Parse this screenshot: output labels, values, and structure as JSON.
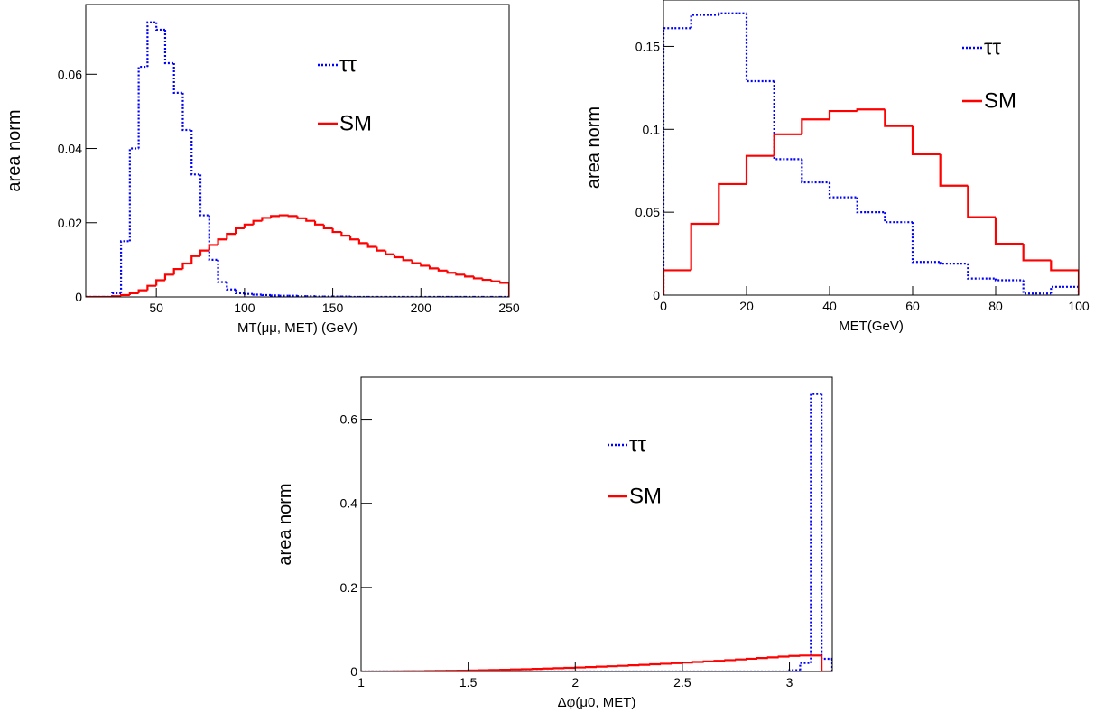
{
  "chart_data": [
    {
      "type": "histogram",
      "x_label": "MT(μμ, MET) (GeV)",
      "y_label": "area norm",
      "bins": [
        10,
        15,
        20,
        25,
        30,
        35,
        40,
        45,
        50,
        55,
        60,
        65,
        70,
        75,
        80,
        85,
        90,
        95,
        100,
        105,
        110,
        115,
        120,
        125,
        130,
        135,
        140,
        145,
        150,
        155,
        160,
        165,
        170,
        175,
        180,
        185,
        190,
        195,
        200,
        205,
        210,
        215,
        220,
        225,
        230,
        235,
        240,
        245,
        250
      ],
      "series": [
        {
          "name": "ττ",
          "color": "#0000ff",
          "line_style": "dotted",
          "values": [
            0,
            0,
            0,
            0.001,
            0.015,
            0.04,
            0.062,
            0.074,
            0.072,
            0.063,
            0.055,
            0.045,
            0.033,
            0.022,
            0.01,
            0.004,
            0.002,
            0.001,
            0.0008,
            0.0006,
            0.0005,
            0.0004,
            0.0003,
            0.0003,
            0.0002,
            0.0002,
            0.0001,
            0.0001,
            0.0001,
            0.0001,
            0,
            0,
            0,
            0,
            0,
            0,
            0,
            0,
            0,
            0,
            0,
            0,
            0,
            0,
            0,
            0,
            0,
            0
          ]
        },
        {
          "name": "SM",
          "color": "#ff0000",
          "line_style": "solid",
          "values": [
            0,
            0,
            0,
            0.0002,
            0.0005,
            0.001,
            0.0018,
            0.003,
            0.0045,
            0.006,
            0.0075,
            0.009,
            0.011,
            0.0125,
            0.014,
            0.0155,
            0.017,
            0.0185,
            0.0195,
            0.0205,
            0.0213,
            0.0218,
            0.022,
            0.0218,
            0.0212,
            0.0205,
            0.0195,
            0.0185,
            0.0175,
            0.0165,
            0.0155,
            0.0145,
            0.0135,
            0.0125,
            0.0115,
            0.0107,
            0.0099,
            0.0091,
            0.0084,
            0.0077,
            0.0071,
            0.0065,
            0.006,
            0.0055,
            0.005,
            0.0046,
            0.0042,
            0.0038
          ]
        }
      ],
      "xlim": [
        10,
        250
      ],
      "xticks": [
        50,
        100,
        150,
        200,
        250
      ],
      "ylim": [
        0,
        0.0788
      ],
      "yticks": [
        0,
        0.02,
        0.04,
        0.06
      ],
      "grid": false
    },
    {
      "type": "histogram",
      "x_label": "MET(GeV)",
      "y_label": "area norm",
      "bins": [
        0,
        6.67,
        13.33,
        20,
        26.67,
        33.33,
        40,
        46.67,
        53.33,
        60,
        66.67,
        73.33,
        80,
        86.67,
        93.33,
        100
      ],
      "series": [
        {
          "name": "ττ",
          "color": "#0000ff",
          "line_style": "dotted",
          "values": [
            0.161,
            0.169,
            0.17,
            0.129,
            0.082,
            0.068,
            0.059,
            0.05,
            0.044,
            0.02,
            0.019,
            0.01,
            0.009,
            0.001,
            0.005
          ]
        },
        {
          "name": "SM",
          "color": "#ff0000",
          "line_style": "solid",
          "values": [
            0.015,
            0.043,
            0.067,
            0.084,
            0.097,
            0.106,
            0.111,
            0.112,
            0.102,
            0.085,
            0.066,
            0.047,
            0.031,
            0.021,
            0.015
          ]
        }
      ],
      "xlim": [
        0,
        100
      ],
      "xticks": [
        0,
        20,
        40,
        60,
        80,
        100
      ],
      "ylim": [
        0,
        0.178
      ],
      "yticks": [
        0,
        0.05,
        0.1,
        0.15
      ],
      "grid": false
    },
    {
      "type": "histogram",
      "x_label": "Δφ(μ0, MET)",
      "y_label": "area norm",
      "bins": [
        1,
        1.05,
        1.1,
        1.15,
        1.2,
        1.25,
        1.3,
        1.35,
        1.4,
        1.45,
        1.5,
        1.55,
        1.6,
        1.65,
        1.7,
        1.75,
        1.8,
        1.85,
        1.9,
        1.95,
        2,
        2.05,
        2.1,
        2.15,
        2.2,
        2.25,
        2.3,
        2.35,
        2.4,
        2.45,
        2.5,
        2.55,
        2.6,
        2.65,
        2.7,
        2.75,
        2.8,
        2.85,
        2.9,
        2.95,
        3,
        3.05,
        3.1,
        3.15,
        3.2
      ],
      "series": [
        {
          "name": "ττ",
          "color": "#0000ff",
          "line_style": "dotted",
          "values": [
            0,
            0,
            0,
            0,
            0,
            0,
            0,
            0,
            0,
            0,
            0,
            0,
            0,
            0,
            0,
            0,
            0,
            0,
            0,
            0,
            0,
            0,
            0,
            0,
            0,
            0,
            0,
            0,
            0,
            0,
            0,
            0,
            0,
            0,
            0,
            0,
            0,
            0,
            0,
            0,
            0.003,
            0.02,
            0.66,
            0.03
          ]
        },
        {
          "name": "SM",
          "color": "#ff0000",
          "line_style": "solid",
          "values": [
            0,
            0.0001,
            0.0001,
            0.0003,
            0.0005,
            0.0007,
            0.001,
            0.0013,
            0.0016,
            0.002,
            0.0025,
            0.003,
            0.0035,
            0.0041,
            0.0048,
            0.0054,
            0.0062,
            0.0069,
            0.0078,
            0.0086,
            0.0095,
            0.0105,
            0.0115,
            0.0125,
            0.0136,
            0.0147,
            0.0159,
            0.0172,
            0.0184,
            0.0197,
            0.0211,
            0.0225,
            0.024,
            0.0254,
            0.027,
            0.0286,
            0.0302,
            0.0319,
            0.0336,
            0.0354,
            0.037,
            0.038,
            0.038,
            0
          ]
        }
      ],
      "xlim": [
        1,
        3.2
      ],
      "xticks": [
        1,
        1.5,
        2,
        2.5,
        3
      ],
      "ylim": [
        0,
        0.7
      ],
      "yticks": [
        0,
        0.2,
        0.4,
        0.6
      ],
      "grid": false
    }
  ]
}
